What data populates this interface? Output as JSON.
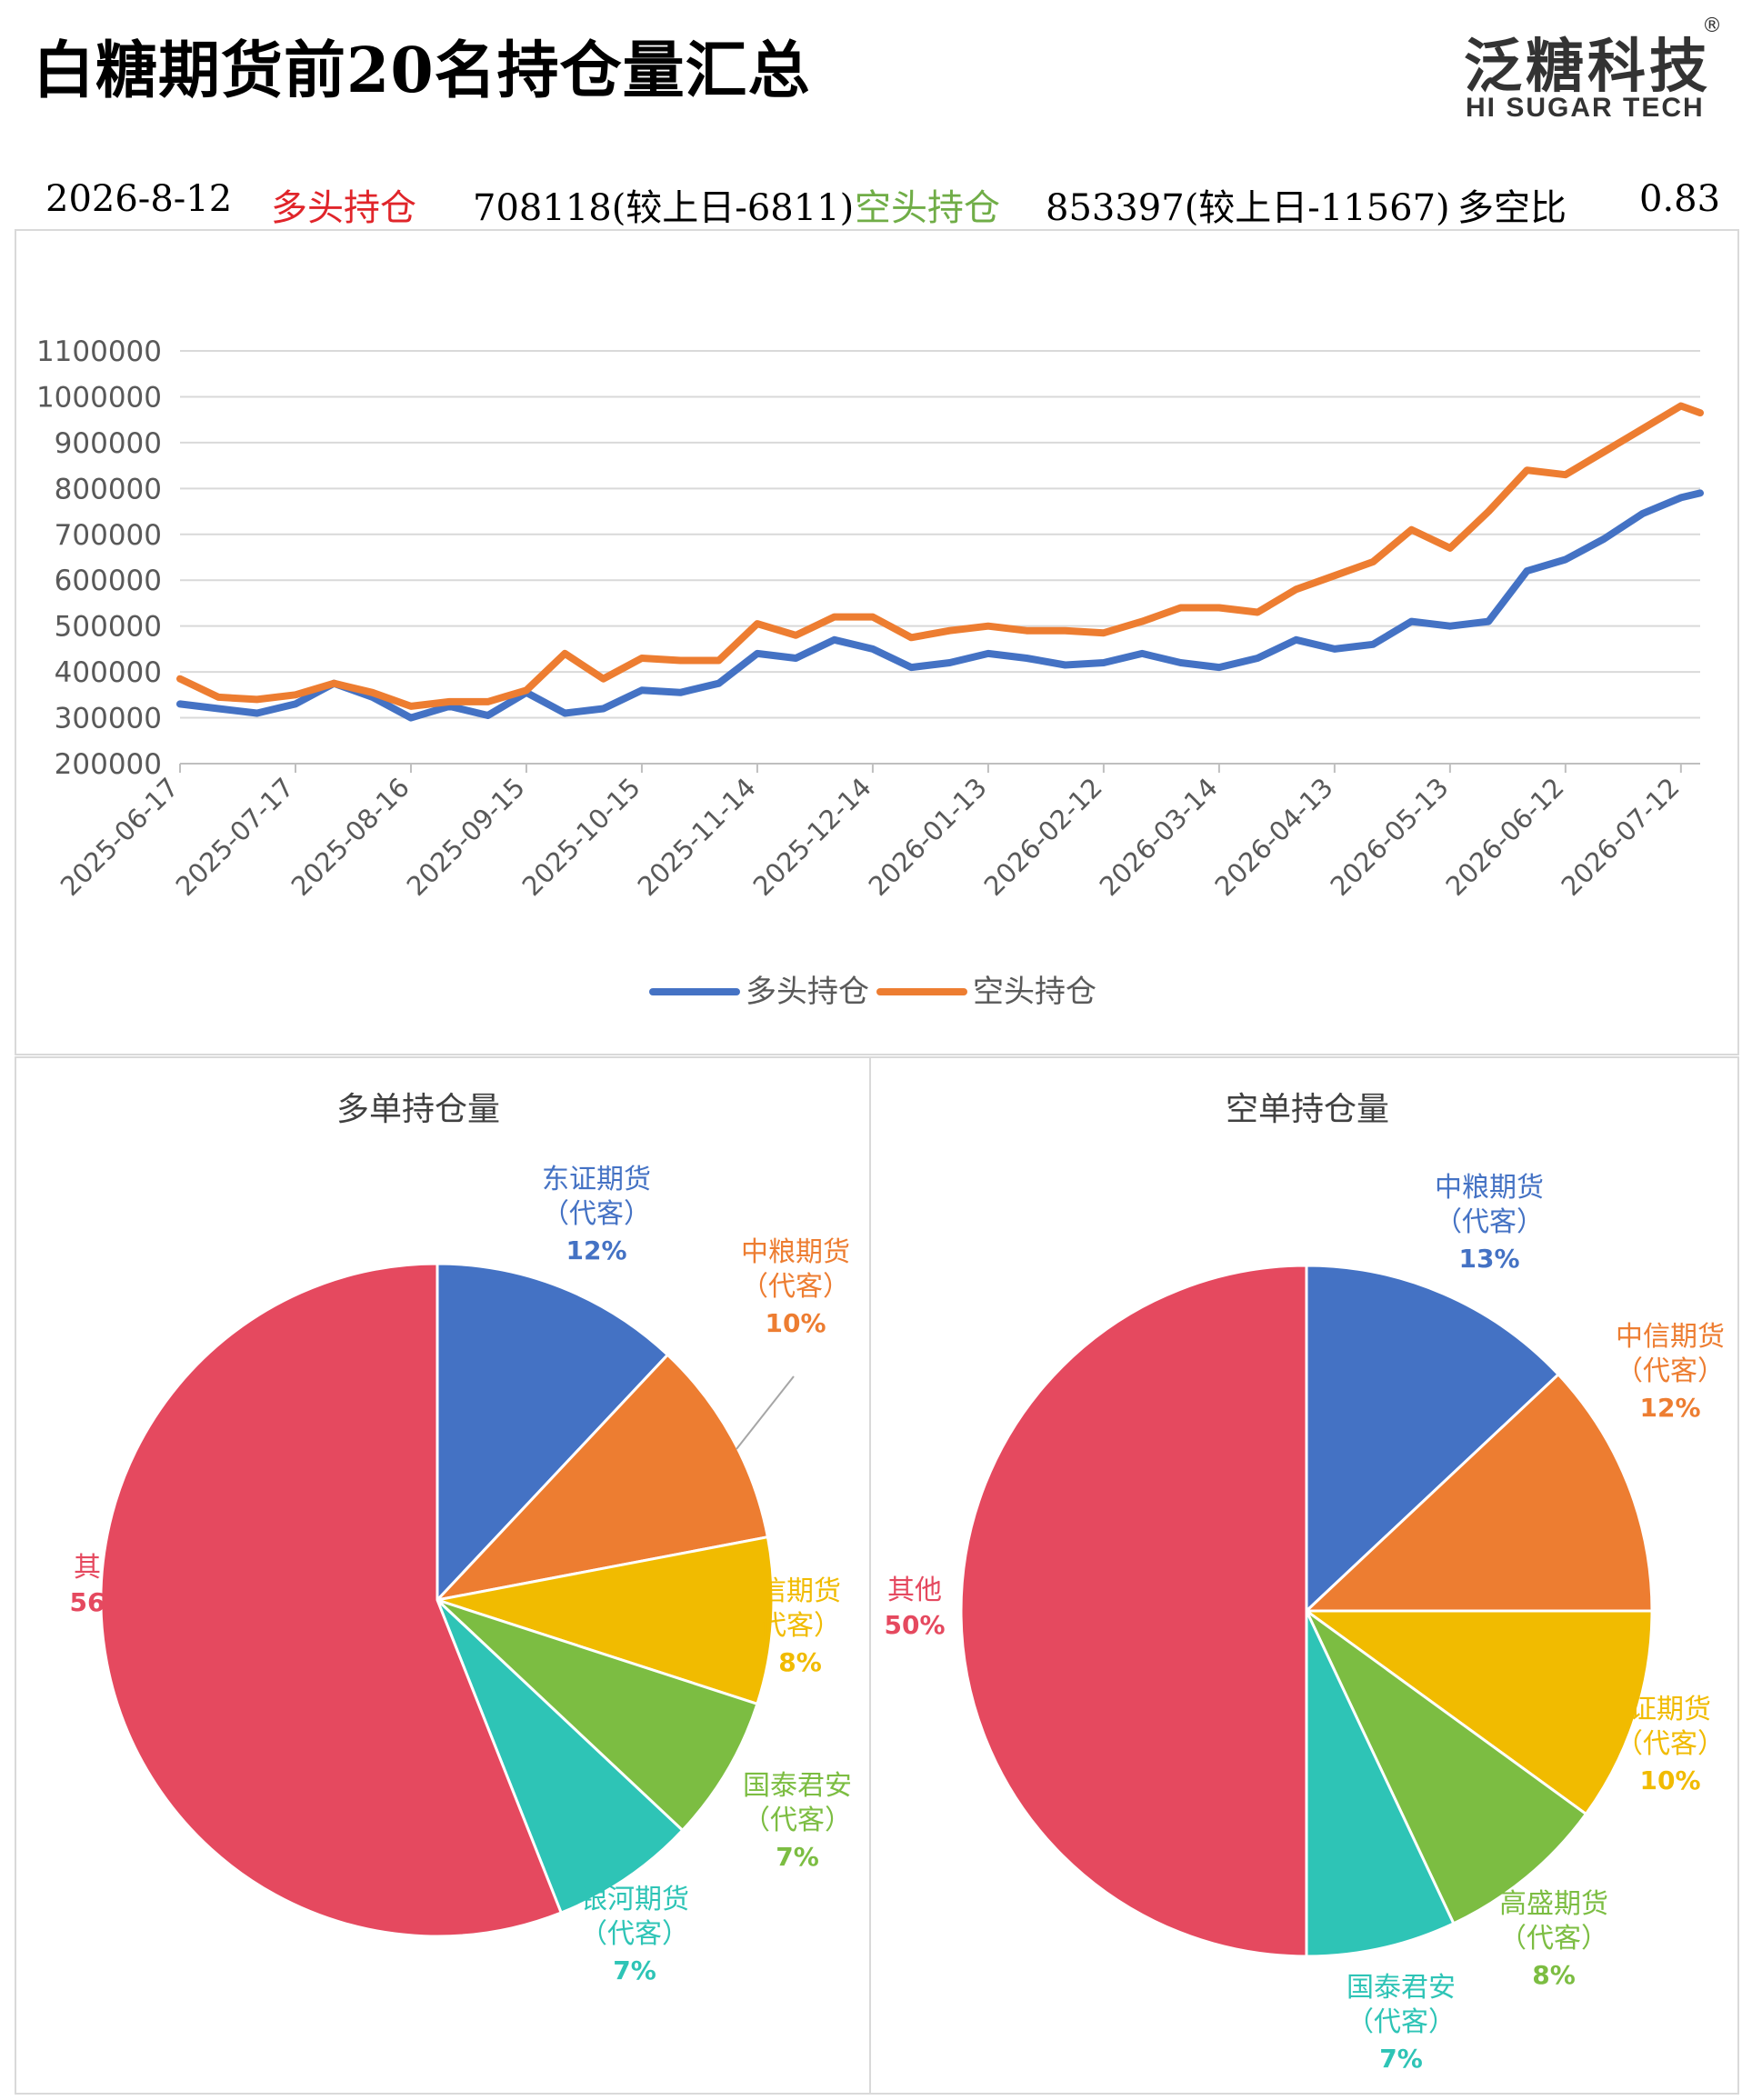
{
  "header": {
    "title": "白糖期货前20名持仓量汇总",
    "brand_cn": "泛糖科技",
    "brand_reg": "®",
    "brand_en": "HI SUGAR TECH"
  },
  "stats": {
    "date": "2026-8-12",
    "long_label": "多头持仓",
    "long_value": "708118(较上日-6811)",
    "short_label": "空头持仓",
    "short_value": "853397(较上日-11567)",
    "ratio_label": "多空比",
    "ratio_value": "0.83"
  },
  "colors": {
    "long_label": "#e0252a",
    "short_label": "#70ad47",
    "long_line": "#4472c4",
    "short_line": "#ed7d31"
  },
  "chart_data": [
    {
      "type": "line",
      "x": [
        "2025-06-17",
        "2025-06-27",
        "2025-07-07",
        "2025-07-17",
        "2025-07-27",
        "2025-08-06",
        "2025-08-16",
        "2025-08-26",
        "2025-09-05",
        "2025-09-15",
        "2025-09-25",
        "2025-10-05",
        "2025-10-15",
        "2025-10-25",
        "2025-11-04",
        "2025-11-14",
        "2025-11-24",
        "2025-12-04",
        "2025-12-14",
        "2025-12-24",
        "2026-01-03",
        "2026-01-13",
        "2026-01-23",
        "2026-02-02",
        "2026-02-12",
        "2026-02-22",
        "2026-03-04",
        "2026-03-14",
        "2026-03-24",
        "2026-04-03",
        "2026-04-13",
        "2026-04-23",
        "2026-05-03",
        "2026-05-13",
        "2026-05-23",
        "2026-06-02",
        "2026-06-12",
        "2026-06-22",
        "2026-07-02",
        "2026-07-12",
        "2026-07-17"
      ],
      "x_ticks": [
        "2025-06-17",
        "2025-07-17",
        "2025-08-16",
        "2025-09-15",
        "2025-10-15",
        "2025-11-14",
        "2025-12-14",
        "2026-01-13",
        "2026-02-12",
        "2026-03-14",
        "2026-04-13",
        "2026-05-13",
        "2026-06-12",
        "2026-07-12"
      ],
      "series": [
        {
          "name": "多头持仓",
          "color": "#4472c4",
          "values": [
            330000,
            320000,
            310000,
            330000,
            375000,
            345000,
            300000,
            325000,
            305000,
            355000,
            310000,
            320000,
            360000,
            355000,
            375000,
            440000,
            430000,
            470000,
            450000,
            410000,
            420000,
            440000,
            430000,
            415000,
            420000,
            440000,
            420000,
            410000,
            430000,
            470000,
            450000,
            460000,
            510000,
            500000,
            510000,
            620000,
            645000,
            690000,
            745000,
            780000,
            790000
          ]
        },
        {
          "name": "空头持仓",
          "color": "#ed7d31",
          "values": [
            385000,
            345000,
            340000,
            350000,
            375000,
            355000,
            325000,
            335000,
            335000,
            360000,
            440000,
            385000,
            430000,
            425000,
            425000,
            505000,
            480000,
            520000,
            520000,
            475000,
            490000,
            500000,
            490000,
            490000,
            485000,
            510000,
            540000,
            540000,
            530000,
            580000,
            610000,
            640000,
            710000,
            670000,
            750000,
            840000,
            830000,
            880000,
            930000,
            980000,
            965000
          ]
        }
      ],
      "ylim": [
        200000,
        1100000
      ],
      "y_ticks": [
        200000,
        300000,
        400000,
        500000,
        600000,
        700000,
        800000,
        900000,
        1000000,
        1100000
      ],
      "grid": true,
      "legend": "bottom"
    },
    {
      "type": "pie",
      "title": "多单持仓量",
      "slices": [
        {
          "name": "东证期货",
          "sub": "（代客）",
          "value": 12,
          "pct": "12%",
          "color": "#4472c4"
        },
        {
          "name": "中粮期货",
          "sub": "（代客）",
          "value": 10,
          "pct": "10%",
          "color": "#ed7d31"
        },
        {
          "name": "信期货",
          "sub": "代客）",
          "value": 8,
          "pct": "8%",
          "color": "#f1bb00"
        },
        {
          "name": "国泰君安",
          "sub": "（代客）",
          "value": 7,
          "pct": "7%",
          "color": "#7cbd42"
        },
        {
          "name": "银河期货",
          "sub": "（代客）",
          "value": 7,
          "pct": "7%",
          "color": "#2ec4b6"
        },
        {
          "name": "其",
          "sub": "",
          "value": 56,
          "pct": "56",
          "color": "#e5495f"
        }
      ]
    },
    {
      "type": "pie",
      "title": "空单持仓量",
      "slices": [
        {
          "name": "中粮期货",
          "sub": "（代客）",
          "value": 13,
          "pct": "13%",
          "color": "#4472c4"
        },
        {
          "name": "中信期货",
          "sub": "（代客）",
          "value": 12,
          "pct": "12%",
          "color": "#ed7d31"
        },
        {
          "name": "证期货",
          "sub": "（代客）",
          "value": 10,
          "pct": "10%",
          "color": "#f1bb00"
        },
        {
          "name": "高盛期货",
          "sub": "（代客）",
          "value": 8,
          "pct": "8%",
          "color": "#7cbd42"
        },
        {
          "name": "国泰君安",
          "sub": "（代客）",
          "value": 7,
          "pct": "7%",
          "color": "#2ec4b6"
        },
        {
          "name": "其他",
          "sub": "",
          "value": 50,
          "pct": "50%",
          "color": "#e5495f"
        }
      ]
    }
  ]
}
